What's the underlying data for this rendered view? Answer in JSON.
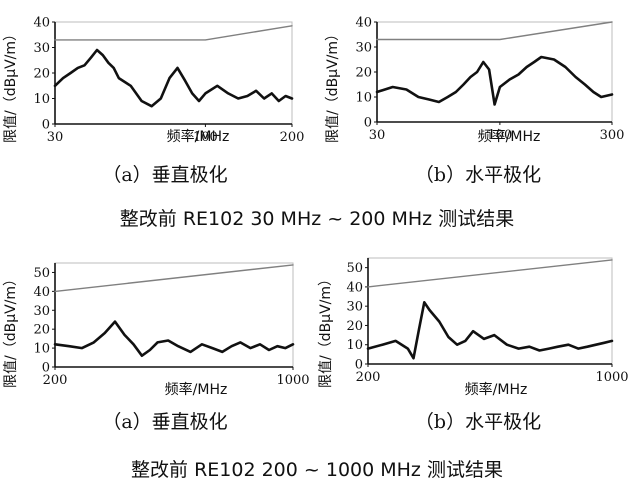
{
  "captions": [
    "整改前 RE102 30 MHz ~ 200 MHz 测试结果",
    "整改前 RE102 200 ~ 1000 MHz 测试结果"
  ],
  "chart_data": [
    {
      "type": "line",
      "sub_caption": "（a）垂直极化",
      "xlabel": "频率/MHz",
      "ylabel": "限值/（dBμV/m）",
      "x_scale": "log",
      "xlim": [
        30,
        200
      ],
      "ylim": [
        0,
        40
      ],
      "x_ticks": [
        "30",
        "100",
        "200"
      ],
      "y_ticks": [
        "0",
        "10",
        "20",
        "30",
        "40"
      ],
      "grid": false,
      "series": [
        {
          "role": "limit",
          "color": "#808080",
          "x": [
            30,
            100,
            200
          ],
          "y": [
            33,
            33,
            38.5
          ]
        },
        {
          "role": "measured",
          "color": "#111111",
          "x": [
            30,
            32,
            34,
            36,
            38,
            40,
            42,
            44,
            46,
            48,
            50,
            55,
            60,
            65,
            70,
            75,
            80,
            85,
            90,
            95,
            100,
            110,
            120,
            130,
            140,
            150,
            160,
            170,
            180,
            190,
            200
          ],
          "y": [
            15,
            18,
            20,
            22,
            23,
            26,
            29,
            27,
            24,
            22,
            18,
            15,
            9,
            7,
            10,
            18,
            22,
            17,
            12,
            9,
            12,
            15,
            12,
            10,
            11,
            13,
            10,
            12,
            9,
            11,
            10
          ]
        }
      ]
    },
    {
      "type": "line",
      "sub_caption": "（b）水平极化",
      "xlabel": "频率/MHz",
      "ylabel": "限值/（dBμV/m）",
      "x_scale": "log",
      "xlim": [
        30,
        300
      ],
      "ylim": [
        0,
        40
      ],
      "x_ticks": [
        "30",
        "100",
        "300"
      ],
      "y_ticks": [
        "0",
        "10",
        "20",
        "30",
        "40"
      ],
      "grid": false,
      "series": [
        {
          "role": "limit",
          "color": "#808080",
          "x": [
            30,
            100,
            300
          ],
          "y": [
            33,
            33,
            40
          ]
        },
        {
          "role": "measured",
          "color": "#111111",
          "x": [
            30,
            35,
            40,
            45,
            50,
            55,
            60,
            65,
            70,
            75,
            80,
            85,
            90,
            95,
            100,
            110,
            120,
            130,
            140,
            150,
            170,
            190,
            210,
            230,
            250,
            270,
            300
          ],
          "y": [
            12,
            14,
            13,
            10,
            9,
            8,
            10,
            12,
            15,
            18,
            20,
            24,
            21,
            7,
            14,
            17,
            19,
            22,
            24,
            26,
            25,
            22,
            18,
            15,
            12,
            10,
            11
          ]
        }
      ]
    },
    {
      "type": "line",
      "sub_caption": "（a）垂直极化",
      "xlabel": "频率/MHz",
      "ylabel": "限值/（dBμV/m）",
      "x_scale": "log",
      "xlim": [
        200,
        1000
      ],
      "ylim": [
        0,
        55
      ],
      "x_ticks": [
        "200",
        "1000"
      ],
      "y_ticks": [
        "0",
        "10",
        "20",
        "30",
        "40",
        "50"
      ],
      "grid": false,
      "series": [
        {
          "role": "limit",
          "color": "#808080",
          "x": [
            200,
            1000
          ],
          "y": [
            40,
            54
          ]
        },
        {
          "role": "measured",
          "color": "#111111",
          "x": [
            200,
            220,
            240,
            260,
            280,
            300,
            320,
            340,
            360,
            380,
            400,
            430,
            460,
            500,
            540,
            580,
            620,
            660,
            700,
            750,
            800,
            850,
            900,
            950,
            1000
          ],
          "y": [
            12,
            11,
            10,
            13,
            18,
            24,
            17,
            12,
            6,
            9,
            13,
            14,
            11,
            8,
            12,
            10,
            8,
            11,
            13,
            10,
            12,
            9,
            11,
            10,
            12
          ]
        }
      ]
    },
    {
      "type": "line",
      "sub_caption": "（b）水平极化",
      "xlabel": "频率/MHz",
      "ylabel": "限值/（dBμV/m）",
      "x_scale": "log",
      "xlim": [
        200,
        1000
      ],
      "ylim": [
        0,
        55
      ],
      "x_ticks": [
        "200",
        "1000"
      ],
      "y_ticks": [
        "0",
        "10",
        "20",
        "30",
        "40",
        "50"
      ],
      "grid": false,
      "series": [
        {
          "role": "limit",
          "color": "#808080",
          "x": [
            200,
            1000
          ],
          "y": [
            40,
            54
          ]
        },
        {
          "role": "measured",
          "color": "#111111",
          "x": [
            200,
            220,
            240,
            260,
            270,
            280,
            290,
            300,
            320,
            340,
            360,
            380,
            400,
            430,
            460,
            500,
            540,
            580,
            620,
            660,
            700,
            750,
            800,
            850,
            900,
            950,
            1000
          ],
          "y": [
            8,
            10,
            12,
            8,
            3,
            18,
            32,
            28,
            22,
            14,
            10,
            12,
            17,
            13,
            15,
            10,
            8,
            9,
            7,
            8,
            9,
            10,
            8,
            9,
            10,
            11,
            12
          ]
        }
      ]
    }
  ]
}
